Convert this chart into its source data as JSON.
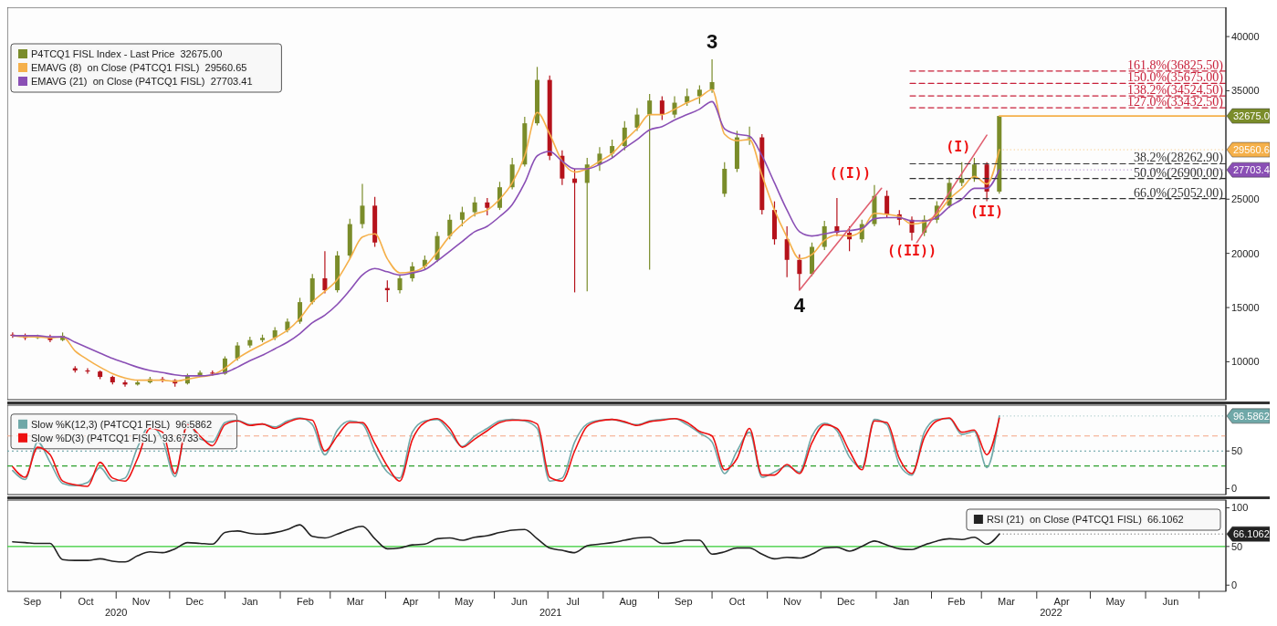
{
  "chart_data": [
    {
      "type": "candlestick",
      "legend": "top left",
      "tick_labels": "y",
      "xlim": [
        "2020-09-01",
        "2022-07-16"
      ],
      "ylim": [
        6500,
        42700
      ],
      "yticks": [
        10000,
        15000,
        20000,
        25000,
        35000,
        40000
      ],
      "x": [
        "2020-09-04",
        "2020-09-11",
        "2020-09-18",
        "2020-09-25",
        "2020-10-02",
        "2020-10-09",
        "2020-10-16",
        "2020-10-23",
        "2020-10-30",
        "2020-11-06",
        "2020-11-13",
        "2020-11-20",
        "2020-11-27",
        "2020-12-04",
        "2020-12-11",
        "2020-12-18",
        "2020-12-25",
        "2021-01-01",
        "2021-01-08",
        "2021-01-15",
        "2021-01-22",
        "2021-01-29",
        "2021-02-05",
        "2021-02-12",
        "2021-02-19",
        "2021-02-26",
        "2021-03-05",
        "2021-03-12",
        "2021-03-19",
        "2021-03-26",
        "2021-04-02",
        "2021-04-09",
        "2021-04-16",
        "2021-04-23",
        "2021-04-30",
        "2021-05-07",
        "2021-05-14",
        "2021-05-21",
        "2021-05-28",
        "2021-06-04",
        "2021-06-11",
        "2021-06-18",
        "2021-06-25",
        "2021-07-02",
        "2021-07-09",
        "2021-07-16",
        "2021-07-23",
        "2021-07-30",
        "2021-08-06",
        "2021-08-13",
        "2021-08-20",
        "2021-08-27",
        "2021-09-03",
        "2021-09-10",
        "2021-09-17",
        "2021-09-24",
        "2021-10-01",
        "2021-10-08",
        "2021-10-15",
        "2021-10-22",
        "2021-10-29",
        "2021-11-05",
        "2021-11-12",
        "2021-11-19",
        "2021-11-26",
        "2021-12-03",
        "2021-12-10",
        "2021-12-17",
        "2021-12-24",
        "2021-12-31",
        "2022-01-07",
        "2022-01-14",
        "2022-01-21",
        "2022-01-28",
        "2022-02-04",
        "2022-02-11",
        "2022-02-18",
        "2022-02-25",
        "2022-03-04",
        "2022-03-11"
      ],
      "series": [
        {
          "name": "P4TCQ1 FISL Index - Last Price  32675.00",
          "color": "#7a8c2a",
          "colors": [
            "#b5121b",
            "#b5121b",
            "#7a8c2a",
            "#b5121b",
            "#7a8c2a",
            "#b5121b",
            "#b5121b",
            "#b5121b",
            "#b5121b",
            "#b5121b",
            "#7a8c2a",
            "#7a8c2a",
            "#b5121b",
            "#b5121b",
            "#7a8c2a",
            "#7a8c2a",
            "#b5121b",
            "#7a8c2a",
            "#7a8c2a",
            "#7a8c2a",
            "#7a8c2a",
            "#7a8c2a",
            "#7a8c2a",
            "#7a8c2a",
            "#7a8c2a",
            "#b5121b",
            "#7a8c2a",
            "#7a8c2a",
            "#7a8c2a",
            "#b5121b",
            "#b5121b",
            "#7a8c2a",
            "#7a8c2a",
            "#7a8c2a",
            "#7a8c2a",
            "#7a8c2a",
            "#7a8c2a",
            "#7a8c2a",
            "#b5121b",
            "#7a8c2a",
            "#7a8c2a",
            "#7a8c2a",
            "#7a8c2a",
            "#b5121b",
            "#b5121b",
            "#b5121b",
            "#7a8c2a",
            "#7a8c2a",
            "#7a8c2a",
            "#7a8c2a",
            "#7a8c2a",
            "#7a8c2a",
            "#b5121b",
            "#7a8c2a",
            "#7a8c2a",
            "#7a8c2a",
            "#7a8c2a",
            "#7a8c2a",
            "#7a8c2a",
            "#7a8c2a",
            "#b5121b",
            "#b5121b",
            "#b5121b",
            "#b5121b",
            "#7a8c2a",
            "#7a8c2a",
            "#b5121b",
            "#b5121b",
            "#7a8c2a",
            "#7a8c2a",
            "#b5121b",
            "#b5121b",
            "#b5121b",
            "#7a8c2a",
            "#7a8c2a",
            "#7a8c2a",
            "#7a8c2a",
            "#7a8c2a",
            "#b5121b",
            "#7a8c2a"
          ],
          "ohlc": [
            [
              12500,
              12700,
              12200,
              12400
            ],
            [
              12400,
              12600,
              12000,
              12200
            ],
            [
              12200,
              12500,
              12100,
              12300
            ],
            [
              12300,
              12500,
              11800,
              12000
            ],
            [
              12000,
              12700,
              11900,
              12400
            ],
            [
              9400,
              9600,
              9000,
              9200
            ],
            [
              9200,
              9400,
              8900,
              9100
            ],
            [
              9100,
              9200,
              8400,
              8600
            ],
            [
              8600,
              8700,
              7900,
              8100
            ],
            [
              8100,
              8300,
              7700,
              7900
            ],
            [
              7900,
              8300,
              7800,
              8100
            ],
            [
              8100,
              8600,
              8000,
              8400
            ],
            [
              8400,
              8600,
              8100,
              8300
            ],
            [
              8300,
              8400,
              7700,
              8000
            ],
            [
              8000,
              8900,
              7900,
              8700
            ],
            [
              8700,
              9200,
              8600,
              9000
            ],
            [
              9000,
              9200,
              8700,
              8900
            ],
            [
              8900,
              10500,
              8800,
              10300
            ],
            [
              10300,
              11800,
              10100,
              11500
            ],
            [
              11500,
              12300,
              11300,
              12000
            ],
            [
              12000,
              12500,
              11800,
              12200
            ],
            [
              12200,
              13200,
              12000,
              12900
            ],
            [
              12900,
              14000,
              12700,
              13700
            ],
            [
              13700,
              15900,
              13500,
              15500
            ],
            [
              15500,
              18100,
              15300,
              17700
            ],
            [
              17700,
              20200,
              16300,
              16600
            ],
            [
              16600,
              20200,
              16400,
              19800
            ],
            [
              19800,
              23200,
              19500,
              22700
            ],
            [
              22700,
              26400,
              22300,
              24400
            ],
            [
              24400,
              25200,
              20600,
              21000
            ],
            [
              16800,
              17500,
              15500,
              16600
            ],
            [
              16600,
              18000,
              16300,
              17700
            ],
            [
              17700,
              19200,
              17400,
              18800
            ],
            [
              18800,
              19800,
              18500,
              19400
            ],
            [
              19400,
              22000,
              19200,
              21600
            ],
            [
              21600,
              23600,
              21300,
              23100
            ],
            [
              23100,
              24300,
              22500,
              23800
            ],
            [
              23800,
              25200,
              23400,
              24700
            ],
            [
              24700,
              25100,
              23500,
              24200
            ],
            [
              24200,
              26600,
              24000,
              26100
            ],
            [
              26100,
              28800,
              25900,
              28200
            ],
            [
              28200,
              32600,
              28000,
              32000
            ],
            [
              32000,
              37200,
              31800,
              36000
            ],
            [
              36000,
              36400,
              28600,
              29000
            ],
            [
              29000,
              29500,
              26300,
              26900
            ],
            [
              26900,
              27800,
              16400,
              26500
            ],
            [
              26500,
              28800,
              16500,
              28200
            ],
            [
              28200,
              29800,
              27600,
              29200
            ],
            [
              29200,
              30500,
              28800,
              29900
            ],
            [
              29900,
              32200,
              29500,
              31600
            ],
            [
              31600,
              33400,
              31300,
              32800
            ],
            [
              32800,
              34700,
              18500,
              34100
            ],
            [
              34100,
              34500,
              32300,
              32800
            ],
            [
              32800,
              34500,
              32500,
              33900
            ],
            [
              33900,
              35200,
              33600,
              34500
            ],
            [
              34500,
              35500,
              33800,
              35100
            ],
            [
              35100,
              37900,
              34800,
              35800
            ],
            [
              25500,
              28400,
              25200,
              27800
            ],
            [
              27800,
              31300,
              27500,
              30700
            ],
            [
              30700,
              31700,
              30000,
              30700
            ],
            [
              30700,
              31000,
              23600,
              24000
            ],
            [
              24000,
              24800,
              20800,
              21300
            ],
            [
              21300,
              22500,
              17800,
              19400
            ],
            [
              19400,
              19900,
              16600,
              18100
            ],
            [
              18100,
              21000,
              17900,
              20600
            ],
            [
              20600,
              23000,
              20300,
              22500
            ],
            [
              22500,
              25100,
              21600,
              21900
            ],
            [
              21900,
              22500,
              20200,
              21300
            ],
            [
              21300,
              23100,
              21000,
              22700
            ],
            [
              22700,
              26300,
              22500,
              25300
            ],
            [
              25300,
              25800,
              23300,
              23600
            ],
            [
              23600,
              24000,
              22600,
              23100
            ],
            [
              23100,
              23400,
              21200,
              21900
            ],
            [
              21900,
              23500,
              21600,
              23100
            ],
            [
              23100,
              24800,
              22800,
              24400
            ],
            [
              24400,
              27000,
              24200,
              26500
            ],
            [
              26500,
              28400,
              26200,
              26900
            ],
            [
              26900,
              28800,
              26600,
              28200
            ],
            [
              28200,
              28400,
              24800,
              25700
            ],
            [
              25700,
              32675,
              25500,
              32675
            ]
          ]
        },
        {
          "type": "line",
          "name": "EMAVG (8)  on Close (P4TCQ1 FISL)  29560.65",
          "color": "#f5b04a",
          "values": [
            12400,
            12300,
            12300,
            12200,
            12300,
            11000,
            10200,
            9500,
            8900,
            8500,
            8300,
            8300,
            8300,
            8200,
            8400,
            8600,
            8800,
            9400,
            10300,
            11000,
            11600,
            12200,
            12900,
            14000,
            15500,
            16500,
            17600,
            19500,
            21500,
            21800,
            19500,
            18200,
            18300,
            18800,
            20100,
            21600,
            22700,
            23600,
            24000,
            25000,
            26500,
            29000,
            33000,
            31000,
            28500,
            27500,
            27800,
            28500,
            29200,
            30400,
            31500,
            32800,
            32800,
            33300,
            33900,
            34400,
            35100,
            31000,
            30400,
            30500,
            27200,
            24000,
            21500,
            19500,
            19900,
            21200,
            21700,
            21600,
            22100,
            23700,
            23600,
            23400,
            22700,
            22900,
            23600,
            25000,
            26000,
            27100,
            26400,
            29560.65
          ]
        },
        {
          "type": "line",
          "name": "EMAVG (21)  on Close (P4TCQ1 FISL)  27703.41",
          "color": "#8a4fb5",
          "values": [
            12400,
            12400,
            12400,
            12300,
            12300,
            11800,
            11300,
            10800,
            10300,
            9900,
            9500,
            9200,
            9000,
            8800,
            8700,
            8700,
            8800,
            9000,
            9500,
            10100,
            10600,
            11200,
            11800,
            12600,
            13600,
            14300,
            15300,
            16600,
            18000,
            18600,
            18300,
            18000,
            18200,
            18500,
            19300,
            20200,
            21100,
            22000,
            22500,
            23400,
            24500,
            26500,
            29000,
            29400,
            28500,
            27800,
            27800,
            28200,
            28800,
            29700,
            30500,
            31400,
            31700,
            32300,
            32800,
            33300,
            34000,
            31500,
            31000,
            30800,
            29000,
            26500,
            24000,
            22000,
            21600,
            21800,
            22000,
            22100,
            22300,
            23200,
            23300,
            23300,
            23000,
            23000,
            23300,
            24300,
            25000,
            26000,
            26000,
            27703.41
          ]
        },
        {
          "type": "line",
          "color": "#f5b04a",
          "x": [
            "2022-03-11",
            "2022-07-16"
          ],
          "values": [
            32675,
            32675
          ]
        },
        {
          "type": "line",
          "color": "#e06070",
          "x": [
            "2021-11-19",
            "2022-01-04"
          ],
          "values": [
            16600,
            26000
          ]
        },
        {
          "type": "line",
          "color": "#e06070",
          "x": [
            "2022-01-23",
            "2022-03-04"
          ],
          "values": [
            20800,
            30900
          ]
        },
        {
          "type": "line",
          "color": "#c8203a",
          "line_style": "dashed",
          "x": [
            "2022-01-20",
            "2022-07-16"
          ],
          "values": [
            36825.5,
            36825.5
          ]
        },
        {
          "type": "line",
          "color": "#c8203a",
          "line_style": "dashed",
          "x": [
            "2022-01-20",
            "2022-07-16"
          ],
          "values": [
            35675,
            35675
          ]
        },
        {
          "type": "line",
          "color": "#c8203a",
          "line_style": "dashed",
          "x": [
            "2022-01-20",
            "2022-07-16"
          ],
          "values": [
            34524.5,
            34524.5
          ]
        },
        {
          "type": "line",
          "color": "#c8203a",
          "line_style": "dashed",
          "x": [
            "2022-01-20",
            "2022-07-16"
          ],
          "values": [
            33432.5,
            33432.5
          ]
        },
        {
          "type": "line",
          "color": "#333333",
          "line_style": "dashed",
          "x": [
            "2022-01-20",
            "2022-07-16"
          ],
          "values": [
            28262.9,
            28262.9
          ]
        },
        {
          "type": "line",
          "color": "#333333",
          "line_style": "dashed",
          "x": [
            "2022-01-20",
            "2022-07-16"
          ],
          "values": [
            26900,
            26900
          ]
        },
        {
          "type": "line",
          "color": "#333333",
          "line_style": "dashed",
          "x": [
            "2022-01-20",
            "2022-07-16"
          ],
          "values": [
            25052,
            25052
          ]
        }
      ],
      "annotations": [
        {
          "text": "3",
          "x": "2021-10-01",
          "y": 37900
        },
        {
          "text": "4",
          "x": "2021-11-19",
          "y": 16600
        },
        {
          "text": "((I))",
          "x": "2021-12-31",
          "y": 26300
        },
        {
          "text": "((II))",
          "x": "2022-01-21",
          "y": 21200
        },
        {
          "text": "(I)",
          "x": "2022-02-25",
          "y": 28800
        },
        {
          "text": "(II)",
          "x": "2022-03-04",
          "y": 24800
        },
        {
          "text": "32675.0",
          "x": "2022-07-16",
          "y": 32675
        },
        {
          "text": "29560.6",
          "x": "2022-03-11",
          "y": 29560.65
        },
        {
          "text": "27703.4",
          "x": "2022-03-11",
          "y": 27703.41
        },
        {
          "text": "161.8%(36825.50)",
          "x": "2022-07-16",
          "y": 36825.5
        },
        {
          "text": "150.0%(35675.00)",
          "x": "2022-07-16",
          "y": 35675
        },
        {
          "text": "138.2%(34524.50)",
          "x": "2022-07-16",
          "y": 34524.5
        },
        {
          "text": "127.0%(33432.50)",
          "x": "2022-07-16",
          "y": 33432.5
        },
        {
          "text": "38.2%(28262.90)",
          "x": "2022-07-16",
          "y": 28262.9
        },
        {
          "text": "50.0%(26900.00)",
          "x": "2022-07-16",
          "y": 26900
        },
        {
          "text": "66.0%(25052.00)",
          "x": "2022-07-16",
          "y": 25052
        }
      ]
    },
    {
      "type": "line",
      "legend": "top left",
      "tick_labels": "y",
      "xlim": [
        "2020-09-01",
        "2022-07-16"
      ],
      "ylim": [
        -8,
        111
      ],
      "yticks": [
        0,
        50
      ],
      "x": [
        "2020-09-04",
        "2020-09-11",
        "2020-09-18",
        "2020-09-25",
        "2020-10-02",
        "2020-10-09",
        "2020-10-16",
        "2020-10-23",
        "2020-10-30",
        "2020-11-06",
        "2020-11-13",
        "2020-11-20",
        "2020-11-27",
        "2020-12-04",
        "2020-12-11",
        "2020-12-18",
        "2020-12-25",
        "2021-01-01",
        "2021-01-08",
        "2021-01-15",
        "2021-01-22",
        "2021-01-29",
        "2021-02-05",
        "2021-02-12",
        "2021-02-19",
        "2021-02-26",
        "2021-03-05",
        "2021-03-12",
        "2021-03-19",
        "2021-03-26",
        "2021-04-02",
        "2021-04-09",
        "2021-04-16",
        "2021-04-23",
        "2021-04-30",
        "2021-05-07",
        "2021-05-14",
        "2021-05-21",
        "2021-05-28",
        "2021-06-04",
        "2021-06-11",
        "2021-06-18",
        "2021-06-25",
        "2021-07-02",
        "2021-07-09",
        "2021-07-16",
        "2021-07-23",
        "2021-07-30",
        "2021-08-06",
        "2021-08-13",
        "2021-08-20",
        "2021-08-27",
        "2021-09-03",
        "2021-09-10",
        "2021-09-17",
        "2021-09-24",
        "2021-10-01",
        "2021-10-08",
        "2021-10-15",
        "2021-10-22",
        "2021-10-29",
        "2021-11-05",
        "2021-11-12",
        "2021-11-19",
        "2021-11-26",
        "2021-12-03",
        "2021-12-10",
        "2021-12-17",
        "2021-12-24",
        "2021-12-31",
        "2022-01-07",
        "2022-01-14",
        "2022-01-21",
        "2022-01-28",
        "2022-02-04",
        "2022-02-11",
        "2022-02-18",
        "2022-02-25",
        "2022-03-04",
        "2022-03-11"
      ],
      "series": [
        {
          "name": "Slow %K(12,3) (P4TCQ1 FISL)  96.5862",
          "color": "#6fa8a8",
          "values": [
            24,
            12,
            62,
            35,
            7,
            4,
            8,
            28,
            10,
            14,
            55,
            84,
            65,
            16,
            88,
            66,
            62,
            88,
            91,
            85,
            86,
            82,
            90,
            94,
            85,
            45,
            78,
            90,
            86,
            50,
            22,
            14,
            75,
            90,
            92,
            75,
            56,
            70,
            80,
            90,
            92,
            90,
            80,
            10,
            14,
            62,
            86,
            91,
            92,
            88,
            85,
            90,
            92,
            93,
            85,
            74,
            62,
            20,
            50,
            75,
            15,
            22,
            30,
            22,
            70,
            87,
            77,
            42,
            28,
            92,
            85,
            32,
            18,
            75,
            92,
            93,
            72,
            76,
            28,
            96.5862
          ]
        },
        {
          "name": "Slow %D(3) (P4TCQ1 FISL)  93.6733",
          "color": "#ee1111",
          "values": [
            29,
            15,
            55,
            45,
            10,
            5,
            3,
            35,
            14,
            10,
            40,
            80,
            75,
            20,
            85,
            70,
            57,
            85,
            90,
            84,
            86,
            80,
            88,
            93,
            91,
            50,
            70,
            88,
            88,
            60,
            30,
            10,
            65,
            88,
            93,
            80,
            55,
            66,
            77,
            88,
            91,
            91,
            86,
            15,
            10,
            50,
            83,
            90,
            92,
            89,
            84,
            89,
            91,
            93,
            88,
            76,
            70,
            25,
            40,
            80,
            18,
            18,
            32,
            20,
            61,
            85,
            80,
            50,
            25,
            90,
            88,
            40,
            20,
            68,
            90,
            94,
            75,
            78,
            45,
            93.6733
          ]
        }
      ],
      "ref_lines": [
        {
          "axis": "y",
          "value": 70,
          "color": "#f4a582",
          "line_style": "dashed"
        },
        {
          "axis": "y",
          "value": 50,
          "color": "#5b9aa0",
          "line_style": "dotted"
        },
        {
          "axis": "y",
          "value": 30,
          "color": "#2ca02c",
          "line_style": "dashed"
        }
      ],
      "annotations": [
        {
          "text": "96.5862",
          "x": "2022-03-11",
          "y": 96.5862
        }
      ]
    },
    {
      "type": "line",
      "legend": "top right",
      "xlim": [
        "2020-09-01",
        "2022-07-16"
      ],
      "ylim": [
        -8,
        110
      ],
      "yticks": [
        0,
        50,
        100
      ],
      "xticks": [
        {
          "value": "2020-09-15",
          "label": "Sep"
        },
        {
          "value": "2020-10-15",
          "label": "Oct"
        },
        {
          "value": "2020-11-15",
          "label": "Nov"
        },
        {
          "value": "2020-12-15",
          "label": "Dec"
        },
        {
          "value": "2021-01-15",
          "label": "Jan"
        },
        {
          "value": "2021-02-15",
          "label": "Feb"
        },
        {
          "value": "2021-03-15",
          "label": "Mar"
        },
        {
          "value": "2021-04-15",
          "label": "Apr"
        },
        {
          "value": "2021-05-15",
          "label": "May"
        },
        {
          "value": "2021-06-15",
          "label": "Jun"
        },
        {
          "value": "2021-07-15",
          "label": "Jul"
        },
        {
          "value": "2021-08-15",
          "label": "Aug"
        },
        {
          "value": "2021-09-15",
          "label": "Sep"
        },
        {
          "value": "2021-10-15",
          "label": "Oct"
        },
        {
          "value": "2021-11-15",
          "label": "Nov"
        },
        {
          "value": "2021-12-15",
          "label": "Dec"
        },
        {
          "value": "2022-01-15",
          "label": "Jan"
        },
        {
          "value": "2022-02-15",
          "label": "Feb"
        },
        {
          "value": "2022-03-15",
          "label": "Mar"
        },
        {
          "value": "2022-04-15",
          "label": "Apr"
        },
        {
          "value": "2022-05-15",
          "label": "May"
        },
        {
          "value": "2022-06-15",
          "label": "Jun"
        },
        {
          "value": "2020-10-01",
          "label": null
        },
        {
          "value": "2020-11-01",
          "label": null
        },
        {
          "value": "2020-12-01",
          "label": null
        },
        {
          "value": "2021-01-01",
          "label": null
        },
        {
          "value": "2021-02-01",
          "label": null
        },
        {
          "value": "2021-03-01",
          "label": null
        },
        {
          "value": "2021-04-01",
          "label": null
        },
        {
          "value": "2021-05-01",
          "label": null
        },
        {
          "value": "2021-06-01",
          "label": null
        },
        {
          "value": "2021-07-01",
          "label": null
        },
        {
          "value": "2021-08-01",
          "label": null
        },
        {
          "value": "2021-09-01",
          "label": null
        },
        {
          "value": "2021-10-01",
          "label": null
        },
        {
          "value": "2021-11-01",
          "label": null
        },
        {
          "value": "2021-12-01",
          "label": null
        },
        {
          "value": "2022-01-01",
          "label": null
        },
        {
          "value": "2022-02-01",
          "label": null
        },
        {
          "value": "2022-03-01",
          "label": null
        },
        {
          "value": "2022-04-01",
          "label": null
        },
        {
          "value": "2022-05-01",
          "label": null
        },
        {
          "value": "2022-06-01",
          "label": null
        },
        {
          "value": "2022-07-01",
          "label": null
        }
      ],
      "x": [
        "2020-09-04",
        "2020-09-11",
        "2020-09-18",
        "2020-09-25",
        "2020-10-02",
        "2020-10-09",
        "2020-10-16",
        "2020-10-23",
        "2020-10-30",
        "2020-11-06",
        "2020-11-13",
        "2020-11-20",
        "2020-11-27",
        "2020-12-04",
        "2020-12-11",
        "2020-12-18",
        "2020-12-25",
        "2021-01-01",
        "2021-01-08",
        "2021-01-15",
        "2021-01-22",
        "2021-01-29",
        "2021-02-05",
        "2021-02-12",
        "2021-02-19",
        "2021-02-26",
        "2021-03-05",
        "2021-03-12",
        "2021-03-19",
        "2021-03-26",
        "2021-04-02",
        "2021-04-09",
        "2021-04-16",
        "2021-04-23",
        "2021-04-30",
        "2021-05-07",
        "2021-05-14",
        "2021-05-21",
        "2021-05-28",
        "2021-06-04",
        "2021-06-11",
        "2021-06-18",
        "2021-06-25",
        "2021-07-02",
        "2021-07-09",
        "2021-07-16",
        "2021-07-23",
        "2021-07-30",
        "2021-08-06",
        "2021-08-13",
        "2021-08-20",
        "2021-08-27",
        "2021-09-03",
        "2021-09-10",
        "2021-09-17",
        "2021-09-24",
        "2021-10-01",
        "2021-10-08",
        "2021-10-15",
        "2021-10-22",
        "2021-10-29",
        "2021-11-05",
        "2021-11-12",
        "2021-11-19",
        "2021-11-26",
        "2021-12-03",
        "2021-12-10",
        "2021-12-17",
        "2021-12-24",
        "2021-12-31",
        "2022-01-07",
        "2022-01-14",
        "2022-01-21",
        "2022-01-28",
        "2022-02-04",
        "2022-02-11",
        "2022-02-18",
        "2022-02-25",
        "2022-03-04",
        "2022-03-11"
      ],
      "series": [
        {
          "name": "RSI (21)  on Close (P4TCQ1 FISL)  66.1062",
          "color": "#222222",
          "values": [
            56,
            55,
            54,
            54,
            33,
            32,
            32,
            34,
            31,
            30,
            38,
            43,
            42,
            47,
            55,
            54,
            53,
            68,
            70,
            67,
            66,
            68,
            72,
            78,
            63,
            61,
            66,
            72,
            76,
            60,
            47,
            48,
            52,
            53,
            60,
            61,
            58,
            62,
            64,
            68,
            71,
            72,
            60,
            48,
            45,
            42,
            51,
            53,
            55,
            58,
            61,
            62,
            54,
            55,
            58,
            58,
            40,
            43,
            48,
            48,
            40,
            34,
            36,
            35,
            40,
            48,
            49,
            44,
            50,
            57,
            52,
            47,
            46,
            52,
            57,
            60,
            59,
            62,
            53,
            66.1062
          ]
        }
      ],
      "ref_lines": [
        {
          "axis": "y",
          "value": 50,
          "color": "#33cc33",
          "line_style": "solid"
        }
      ],
      "annotations": [
        "2020",
        "2021",
        "2022",
        {
          "text": "66.1062",
          "x": "2022-03-11",
          "y": 66.1062
        }
      ]
    }
  ]
}
